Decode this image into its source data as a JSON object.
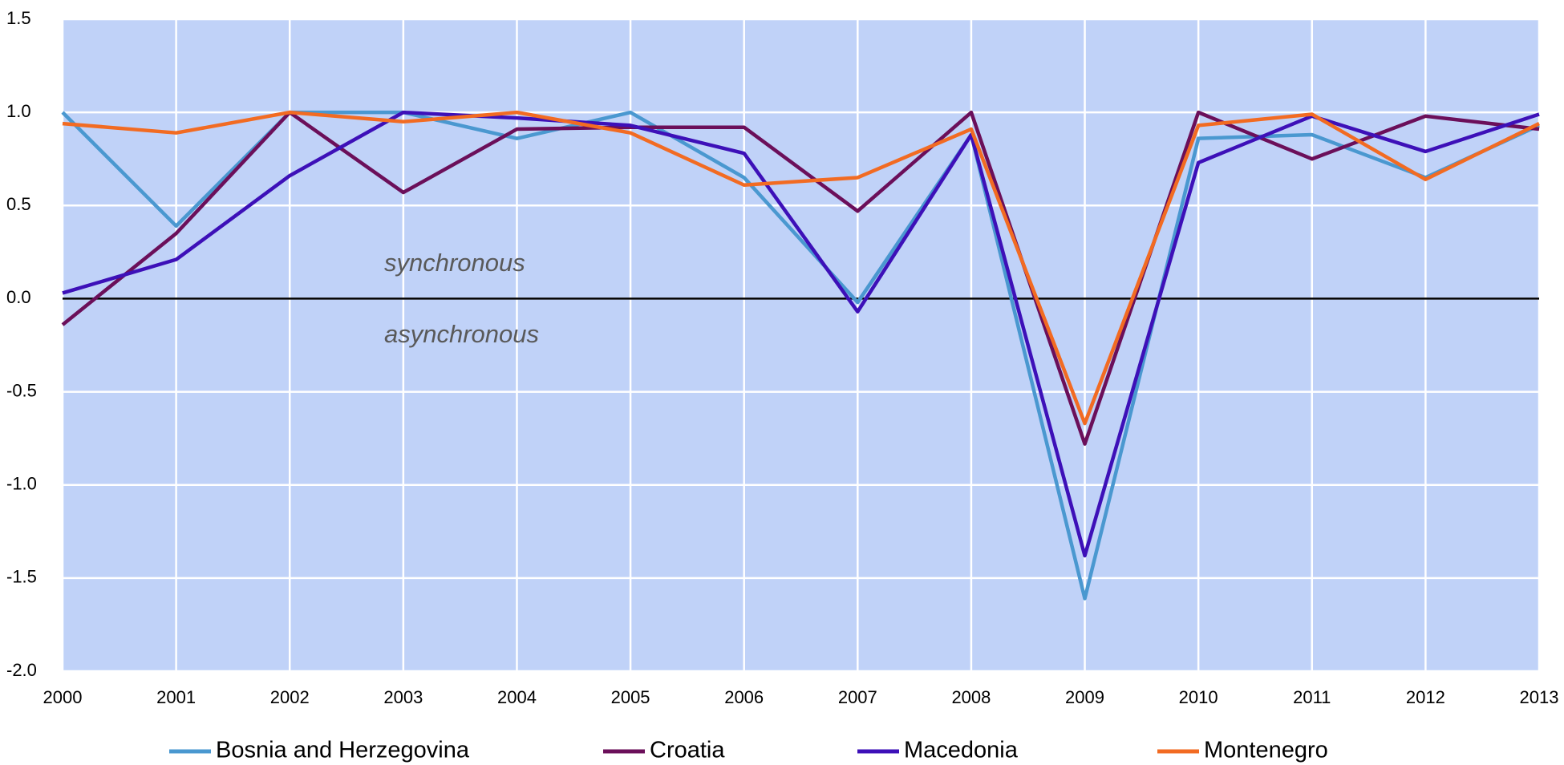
{
  "chart_data": {
    "type": "line",
    "categories": [
      "2000",
      "2001",
      "2002",
      "2003",
      "2004",
      "2005",
      "2006",
      "2007",
      "2008",
      "2009",
      "2010",
      "2011",
      "2012",
      "2013"
    ],
    "series": [
      {
        "name": "Bosnia and Herzegovina",
        "color": "#4a98d0",
        "values": [
          1.0,
          0.39,
          1.0,
          1.0,
          0.86,
          1.0,
          0.65,
          -0.02,
          0.88,
          -1.61,
          0.86,
          0.88,
          0.65,
          0.93
        ]
      },
      {
        "name": "Croatia",
        "color": "#6b0f5a",
        "values": [
          -0.14,
          0.35,
          1.0,
          0.57,
          0.91,
          0.92,
          0.92,
          0.47,
          1.0,
          -0.78,
          1.0,
          0.75,
          0.98,
          0.91
        ]
      },
      {
        "name": "Macedonia",
        "color": "#3d10b8",
        "values": [
          0.03,
          0.21,
          0.66,
          1.0,
          0.97,
          0.93,
          0.78,
          -0.07,
          0.88,
          -1.38,
          0.73,
          0.98,
          0.79,
          0.99
        ]
      },
      {
        "name": "Montenegro",
        "color": "#f26b22",
        "values": [
          0.94,
          0.89,
          1.0,
          0.95,
          1.0,
          0.89,
          0.61,
          0.65,
          0.91,
          -0.67,
          0.93,
          0.99,
          0.64,
          0.94
        ]
      }
    ],
    "annotations": [
      "synchronous",
      "asynchronous"
    ],
    "ylim": [
      -2,
      1.5
    ],
    "yticks": [
      1.5,
      {
        "value": 1,
        "label": "1.0"
      },
      0.5,
      {
        "value": 0,
        "label": "0.0"
      },
      -0.5,
      {
        "value": -1,
        "label": "-1.0"
      },
      -1.5,
      {
        "value": -2,
        "label": "-2.0"
      }
    ],
    "grid": true,
    "background": "#c0d2f8",
    "legend": "bottom"
  }
}
